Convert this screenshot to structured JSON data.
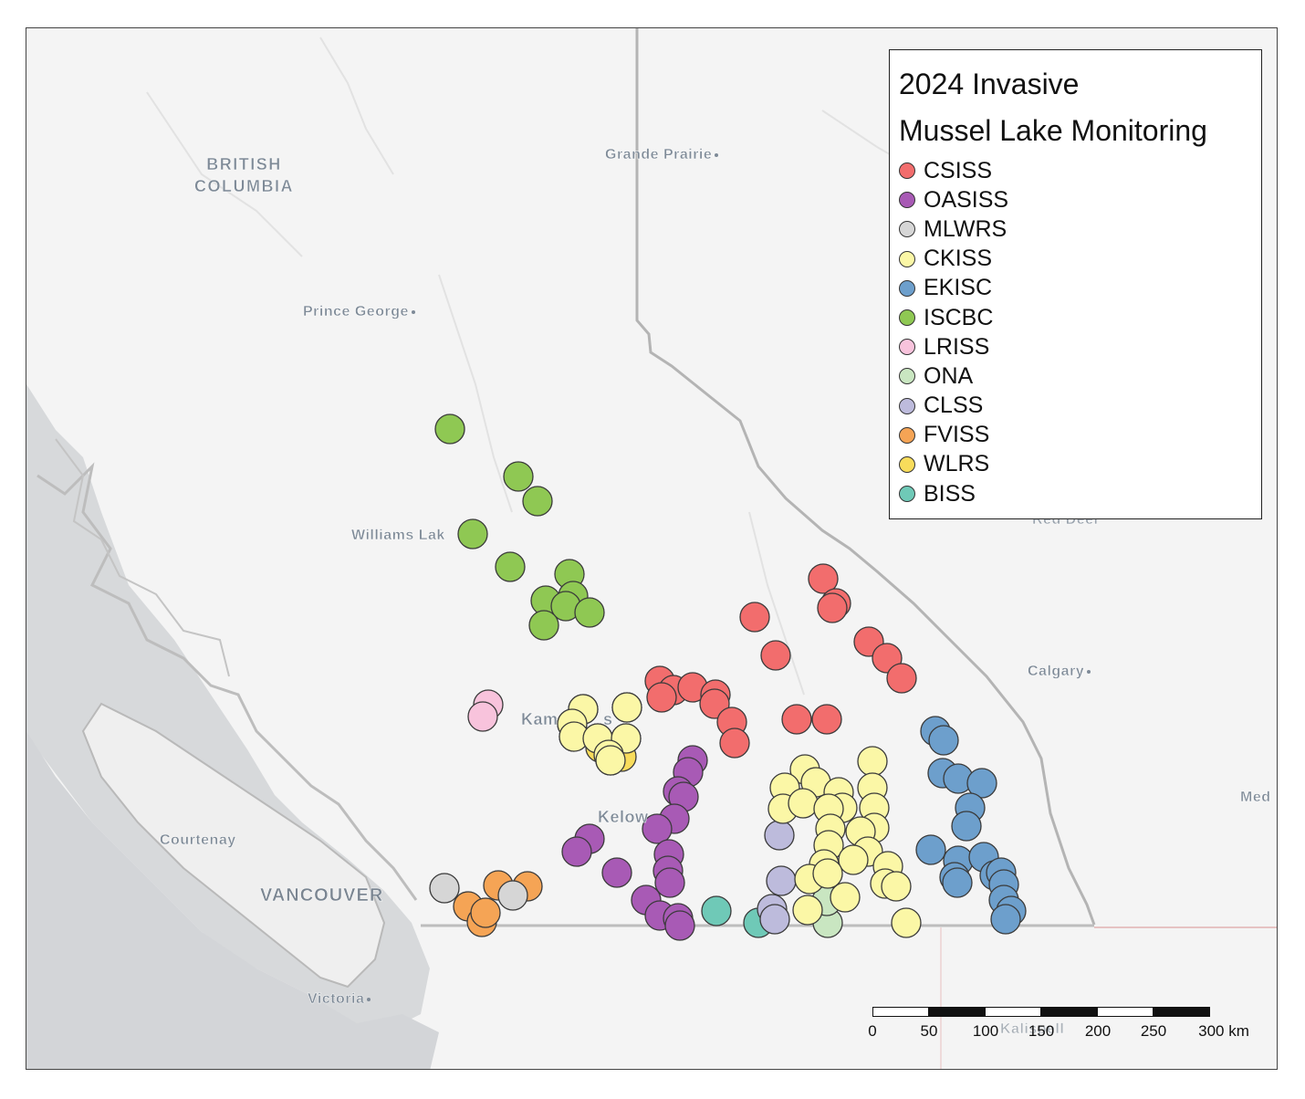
{
  "map": {
    "legend": {
      "title": "2024 Invasive\nMussel Lake Monitoring",
      "entries": [
        {
          "label": "CSISS",
          "color": "#f26d6d"
        },
        {
          "label": "OASISS",
          "color": "#a85ab5"
        },
        {
          "label": "MLWRS",
          "color": "#d6d6d6"
        },
        {
          "label": "CKISS",
          "color": "#fbf7a6"
        },
        {
          "label": "EKISC",
          "color": "#6d9fcc"
        },
        {
          "label": "ISCBC",
          "color": "#8fc853"
        },
        {
          "label": "LRISS",
          "color": "#f8c3dc"
        },
        {
          "label": "ONA",
          "color": "#c9e6c1"
        },
        {
          "label": "CLSS",
          "color": "#bdbbdc"
        },
        {
          "label": "FVISS",
          "color": "#f5a455"
        },
        {
          "label": "WLRS",
          "color": "#f8dc5b"
        },
        {
          "label": "BISS",
          "color": "#6fc9b7"
        }
      ]
    },
    "places": {
      "bc_line1": "BRITISH",
      "bc_line2": "COLUMBIA",
      "grande_prairie": "Grande Prairie",
      "prince_george": "Prince George",
      "williams_lake": "Williams Lak",
      "kamloops": "Kam",
      "kamloops_tail": "s",
      "kelowna": "Kelow",
      "courtenay": "Courtenay",
      "vancouver": "VANCOUVER",
      "victoria": "Victoria",
      "calgary": "Calgary",
      "red_deer": "Red Deer",
      "medicine_hat": "Med",
      "kalispell": "Kalispell"
    },
    "scale_bar": {
      "ticks": [
        "0",
        "50",
        "100",
        "150",
        "200",
        "250",
        "300 km"
      ]
    },
    "sites": {
      "CSISS": [
        [
          901,
          633
        ],
        [
          915,
          660
        ],
        [
          911,
          665
        ],
        [
          826,
          675
        ],
        [
          849,
          717
        ],
        [
          951,
          702
        ],
        [
          971,
          720
        ],
        [
          987,
          742
        ],
        [
          722,
          745
        ],
        [
          737,
          755
        ],
        [
          758,
          752
        ],
        [
          783,
          760
        ],
        [
          724,
          763
        ],
        [
          782,
          770
        ],
        [
          801,
          790
        ],
        [
          804,
          813
        ],
        [
          872,
          787
        ],
        [
          905,
          787
        ]
      ],
      "OASISS": [
        [
          758,
          832
        ],
        [
          753,
          845
        ],
        [
          742,
          866
        ],
        [
          748,
          872
        ],
        [
          738,
          896
        ],
        [
          719,
          907
        ],
        [
          645,
          918
        ],
        [
          631,
          932
        ],
        [
          675,
          955
        ],
        [
          732,
          935
        ],
        [
          731,
          953
        ],
        [
          733,
          966
        ],
        [
          707,
          985
        ],
        [
          722,
          1002
        ],
        [
          742,
          1005
        ],
        [
          744,
          1013
        ]
      ],
      "MLWRS": [
        [
          486,
          972
        ],
        [
          561,
          980
        ]
      ],
      "CKISS": [
        [
          638,
          776
        ],
        [
          686,
          774
        ],
        [
          626,
          792
        ],
        [
          628,
          806
        ],
        [
          654,
          808
        ],
        [
          685,
          808
        ],
        [
          666,
          826
        ],
        [
          668,
          832
        ],
        [
          881,
          842
        ],
        [
          859,
          862
        ],
        [
          893,
          856
        ],
        [
          918,
          867
        ],
        [
          955,
          833
        ],
        [
          955,
          862
        ],
        [
          857,
          885
        ],
        [
          879,
          879
        ],
        [
          922,
          884
        ],
        [
          907,
          885
        ],
        [
          957,
          884
        ],
        [
          957,
          906
        ],
        [
          909,
          907
        ],
        [
          942,
          910
        ],
        [
          907,
          925
        ],
        [
          950,
          932
        ],
        [
          934,
          941
        ],
        [
          972,
          948
        ],
        [
          969,
          967
        ],
        [
          981,
          970
        ],
        [
          902,
          946
        ],
        [
          886,
          962
        ],
        [
          906,
          956
        ],
        [
          884,
          996
        ],
        [
          925,
          982
        ],
        [
          992,
          1010
        ]
      ],
      "EKISC": [
        [
          1024,
          800
        ],
        [
          1033,
          810
        ],
        [
          1032,
          846
        ],
        [
          1049,
          852
        ],
        [
          1075,
          857
        ],
        [
          1062,
          884
        ],
        [
          1058,
          904
        ],
        [
          1019,
          930
        ],
        [
          1049,
          942
        ],
        [
          1077,
          938
        ],
        [
          1045,
          960
        ],
        [
          1048,
          966
        ],
        [
          1089,
          958
        ],
        [
          1096,
          955
        ],
        [
          1099,
          968
        ],
        [
          1099,
          985
        ],
        [
          1107,
          997
        ],
        [
          1101,
          1006
        ]
      ],
      "ISCBC": [
        [
          492,
          469
        ],
        [
          567,
          521
        ],
        [
          588,
          548
        ],
        [
          517,
          584
        ],
        [
          558,
          620
        ],
        [
          623,
          628
        ],
        [
          627,
          652
        ],
        [
          597,
          657
        ],
        [
          619,
          663
        ],
        [
          645,
          670
        ],
        [
          595,
          684
        ]
      ],
      "LRISS": [
        [
          534,
          771
        ],
        [
          528,
          784
        ]
      ],
      "ONA": [
        [
          906,
          1010
        ],
        [
          905,
          986
        ]
      ],
      "CLSS": [
        [
          853,
          914
        ],
        [
          855,
          964
        ],
        [
          845,
          995
        ],
        [
          848,
          1006
        ]
      ],
      "FVISS": [
        [
          545,
          969
        ],
        [
          577,
          970
        ],
        [
          512,
          992
        ],
        [
          527,
          1009
        ],
        [
          531,
          999
        ]
      ],
      "WLRS": [
        [
          638,
          776
        ],
        [
          686,
          774
        ],
        [
          626,
          792
        ],
        [
          628,
          806
        ],
        [
          654,
          808
        ],
        [
          685,
          808
        ],
        [
          666,
          826
        ],
        [
          668,
          832
        ],
        [
          657,
          818
        ],
        [
          680,
          828
        ]
      ],
      "BISS": [
        [
          784,
          997
        ],
        [
          830,
          1010
        ]
      ]
    }
  }
}
